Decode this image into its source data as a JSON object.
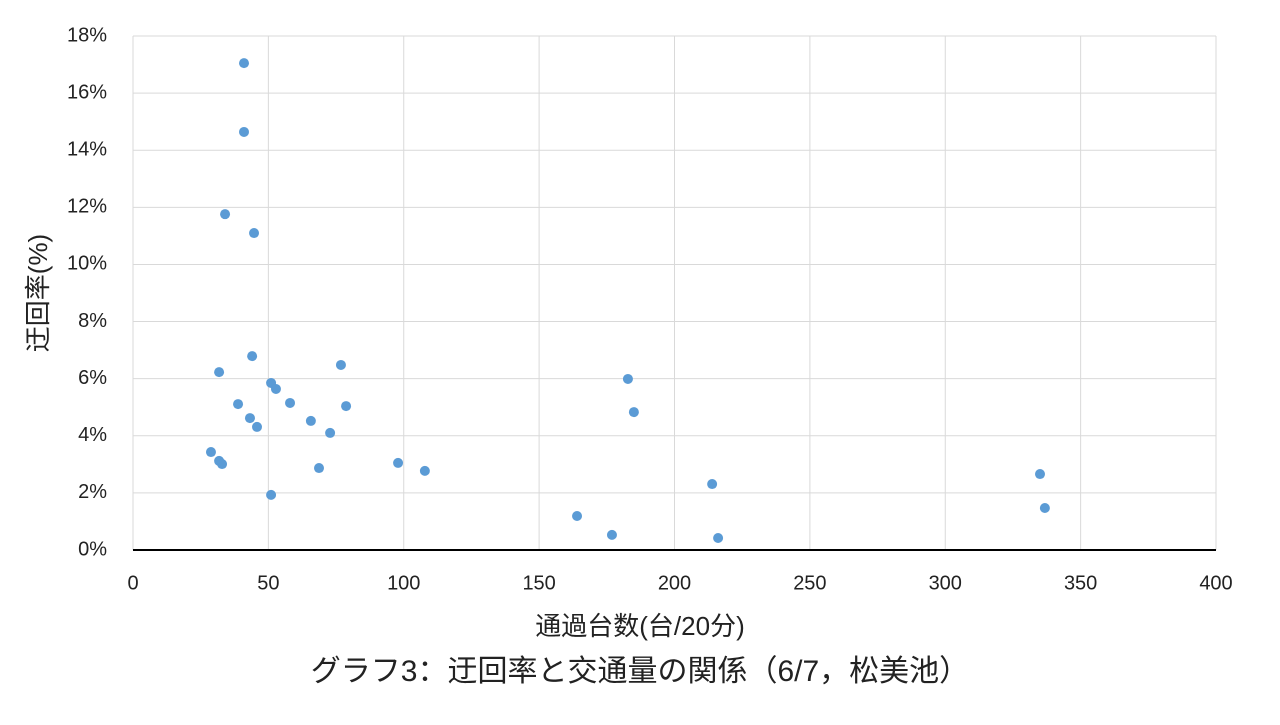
{
  "chart_data": {
    "type": "scatter",
    "title": "グラフ3：迂回率と交通量の関係（6/7，松美池）",
    "xlabel": "通過台数(台/20分)",
    "ylabel": "迂回率(%)",
    "x": [
      41.0,
      41.0,
      34.0,
      44.7,
      44.0,
      76.8,
      31.8,
      182.8,
      51.0,
      52.8,
      38.8,
      58.0,
      78.7,
      185.0,
      43.2,
      65.7,
      45.8,
      72.8,
      28.8,
      31.8,
      32.9,
      97.9,
      68.7,
      107.8,
      335.0,
      213.9,
      51.0,
      336.8,
      164.0,
      176.9,
      216.1
    ],
    "values": [
      17.05,
      14.64,
      11.76,
      11.1,
      6.79,
      6.48,
      6.23,
      5.99,
      5.85,
      5.64,
      5.11,
      5.15,
      5.04,
      4.83,
      4.62,
      4.52,
      4.31,
      4.1,
      3.43,
      3.12,
      3.01,
      3.05,
      2.87,
      2.77,
      2.66,
      2.31,
      1.93,
      1.47,
      1.19,
      0.53,
      0.42
    ],
    "color": "#5b9bd5",
    "xlim": [
      0,
      400
    ],
    "xticks": [
      0,
      50,
      100,
      150,
      200,
      250,
      300,
      350,
      400
    ],
    "ylim": [
      0,
      18
    ],
    "yticks": [
      {
        "value": 0,
        "label": "0%"
      },
      {
        "value": 2,
        "label": "2%"
      },
      {
        "value": 4,
        "label": "4%"
      },
      {
        "value": 6,
        "label": "6%"
      },
      {
        "value": 8,
        "label": "8%"
      },
      {
        "value": 10,
        "label": "10%"
      },
      {
        "value": 12,
        "label": "12%"
      },
      {
        "value": 14,
        "label": "14%"
      },
      {
        "value": 16,
        "label": "16%"
      },
      {
        "value": 18,
        "label": "18%"
      }
    ],
    "grid": true
  }
}
